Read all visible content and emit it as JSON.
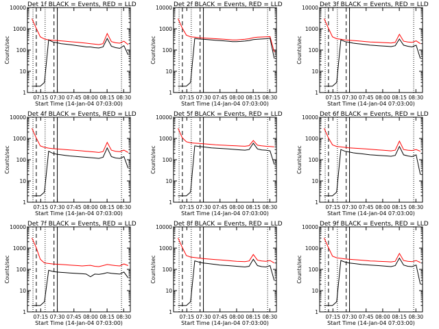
{
  "page": {
    "background": "#ffffff"
  },
  "colors": {
    "events": "#000000",
    "lld": "#ff0000",
    "axis": "#000000"
  },
  "chart_data": [
    {
      "type": "line",
      "title": "Det 1f BLACK = Events, RED = LLD",
      "xlabel": "Start Time (14-Jan-04 07:03:00)",
      "ylabel": "Counts/sec",
      "y_scale": "log",
      "ylim": [
        1,
        10000
      ],
      "y_ticks": [
        "1",
        "10",
        "100",
        "1000",
        "10000"
      ],
      "x_ticks": [
        "07:15",
        "07:30",
        "07:45",
        "08:00",
        "08:15",
        "08:30"
      ],
      "markers": {
        "dotted": [
          "07:08",
          "07:19",
          "08:28"
        ],
        "dashed": [
          "07:11",
          "07:27"
        ],
        "solid": [
          "07:30"
        ]
      },
      "series": [
        {
          "values": [
            3000,
            1100,
            420,
            330,
            300,
            290,
            280,
            270,
            260,
            250,
            240,
            230,
            220,
            210,
            200,
            190,
            180,
            200,
            600,
            250,
            220,
            210,
            260,
            180
          ],
          "color": "red"
        },
        {
          "values": [
            2,
            2,
            2,
            3,
            300,
            240,
            220,
            200,
            190,
            180,
            170,
            160,
            150,
            140,
            140,
            130,
            125,
            140,
            350,
            150,
            130,
            120,
            160,
            60
          ],
          "color": "black"
        }
      ]
    },
    {
      "type": "line",
      "title": "Det 2f BLACK = Events, RED = LLD",
      "xlabel": "Start Time (14-Jan-04 07:03:00)",
      "ylabel": "Counts/sec",
      "y_scale": "log",
      "ylim": [
        1,
        10000
      ],
      "y_ticks": [
        "1",
        "10",
        "100",
        "1000",
        "10000"
      ],
      "x_ticks": [
        "07:15",
        "07:30",
        "07:45",
        "08:00",
        "08:15",
        "08:30"
      ],
      "markers": {
        "dotted": [
          "07:08",
          "07:19",
          "08:28"
        ],
        "dashed": [
          "07:11",
          "07:27"
        ],
        "solid": [
          "07:30"
        ]
      },
      "series": [
        {
          "values": [
            3000,
            1100,
            500,
            420,
            400,
            380,
            370,
            360,
            350,
            340,
            330,
            320,
            310,
            300,
            300,
            310,
            320,
            340,
            380,
            400,
            410,
            420,
            430,
            80
          ],
          "color": "red"
        },
        {
          "values": [
            2,
            2,
            2,
            3,
            350,
            330,
            320,
            310,
            300,
            290,
            280,
            270,
            260,
            250,
            250,
            255,
            265,
            280,
            310,
            320,
            330,
            340,
            360,
            40
          ],
          "color": "black"
        }
      ]
    },
    {
      "type": "line",
      "title": "Det 3f BLACK = Events, RED = LLD",
      "xlabel": "Start Time (14-Jan-04 07:03:00)",
      "ylabel": "Counts/sec",
      "y_scale": "log",
      "ylim": [
        1,
        10000
      ],
      "y_ticks": [
        "1",
        "10",
        "100",
        "1000",
        "10000"
      ],
      "x_ticks": [
        "07:15",
        "07:30",
        "07:45",
        "08:00",
        "08:15",
        "08:30"
      ],
      "markers": {
        "dotted": [
          "07:08",
          "07:19",
          "08:28"
        ],
        "dashed": [
          "07:11",
          "07:27"
        ],
        "solid": [
          "07:30"
        ]
      },
      "series": [
        {
          "values": [
            3000,
            1100,
            420,
            340,
            320,
            300,
            290,
            280,
            270,
            260,
            250,
            240,
            235,
            230,
            225,
            220,
            215,
            230,
            550,
            260,
            240,
            230,
            270,
            200
          ],
          "color": "red"
        },
        {
          "values": [
            2,
            2,
            2,
            3,
            300,
            250,
            230,
            210,
            200,
            190,
            180,
            170,
            165,
            160,
            155,
            150,
            145,
            160,
            330,
            170,
            150,
            140,
            170,
            40
          ],
          "color": "black"
        }
      ]
    },
    {
      "type": "line",
      "title": "Det 4f BLACK = Events, RED = LLD",
      "xlabel": "Start Time (14-Jan-04 07:03:00)",
      "ylabel": "Counts/sec",
      "y_scale": "log",
      "ylim": [
        1,
        10000
      ],
      "y_ticks": [
        "1",
        "10",
        "100",
        "1000",
        "10000"
      ],
      "x_ticks": [
        "07:15",
        "07:30",
        "07:45",
        "08:00",
        "08:15",
        "08:30"
      ],
      "markers": {
        "dotted": [
          "07:08",
          "07:19",
          "08:28"
        ],
        "dashed": [
          "07:11",
          "07:27"
        ],
        "solid": [
          "07:30"
        ]
      },
      "series": [
        {
          "values": [
            3000,
            1100,
            450,
            380,
            350,
            330,
            320,
            310,
            300,
            290,
            280,
            270,
            260,
            250,
            240,
            230,
            220,
            240,
            650,
            280,
            250,
            240,
            280,
            220
          ],
          "color": "red"
        },
        {
          "values": [
            2,
            2,
            2,
            3,
            250,
            200,
            180,
            170,
            160,
            150,
            145,
            140,
            135,
            130,
            125,
            120,
            115,
            130,
            360,
            140,
            120,
            115,
            140,
            40
          ],
          "color": "black"
        }
      ]
    },
    {
      "type": "line",
      "title": "Det 5f BLACK = Events, RED = LLD",
      "xlabel": "Start Time (14-Jan-04 07:03:00)",
      "ylabel": "Counts/sec",
      "y_scale": "log",
      "ylim": [
        1,
        10000
      ],
      "y_ticks": [
        "1",
        "10",
        "100",
        "1000",
        "10000"
      ],
      "x_ticks": [
        "07:15",
        "07:30",
        "07:45",
        "08:00",
        "08:15",
        "08:30"
      ],
      "markers": {
        "dotted": [
          "07:08",
          "07:19",
          "08:28"
        ],
        "dashed": [
          "07:11",
          "07:27"
        ],
        "solid": [
          "07:30"
        ]
      },
      "series": [
        {
          "values": [
            3000,
            1100,
            700,
            620,
            600,
            580,
            560,
            540,
            520,
            500,
            490,
            480,
            470,
            460,
            450,
            440,
            430,
            460,
            800,
            480,
            450,
            430,
            420,
            400
          ],
          "color": "red"
        },
        {
          "values": [
            2,
            2,
            2,
            3,
            450,
            420,
            400,
            380,
            360,
            350,
            340,
            330,
            320,
            310,
            300,
            290,
            280,
            300,
            600,
            320,
            290,
            280,
            260,
            60
          ],
          "color": "black"
        }
      ]
    },
    {
      "type": "line",
      "title": "Det 6f BLACK = Events, RED = LLD",
      "xlabel": "Start Time (14-Jan-04 07:03:00)",
      "ylabel": "Counts/sec",
      "y_scale": "log",
      "ylim": [
        1,
        10000
      ],
      "y_ticks": [
        "1",
        "10",
        "100",
        "1000",
        "10000"
      ],
      "x_ticks": [
        "07:15",
        "07:30",
        "07:45",
        "08:00",
        "08:15",
        "08:30"
      ],
      "markers": {
        "dotted": [
          "07:08",
          "07:19",
          "08:28"
        ],
        "dashed": [
          "07:11",
          "07:27"
        ],
        "solid": [
          "07:30"
        ]
      },
      "series": [
        {
          "values": [
            3000,
            1100,
            500,
            420,
            400,
            380,
            360,
            350,
            340,
            330,
            320,
            310,
            300,
            290,
            280,
            270,
            260,
            280,
            750,
            300,
            280,
            270,
            300,
            250
          ],
          "color": "red"
        },
        {
          "values": [
            2,
            2,
            2,
            3,
            300,
            250,
            230,
            210,
            200,
            190,
            180,
            170,
            165,
            160,
            155,
            150,
            145,
            160,
            420,
            170,
            150,
            140,
            170,
            20
          ],
          "color": "black"
        }
      ]
    },
    {
      "type": "line",
      "title": "Det 7f BLACK = Events, RED = LLD",
      "xlabel": "Start Time (14-Jan-04 07:03:00)",
      "ylabel": "Counts/sec",
      "y_scale": "log",
      "ylim": [
        1,
        10000
      ],
      "y_ticks": [
        "1",
        "10",
        "100",
        "1000",
        "10000"
      ],
      "x_ticks": [
        "07:15",
        "07:30",
        "07:45",
        "08:00",
        "08:15",
        "08:30"
      ],
      "markers": {
        "dotted": [
          "07:08",
          "07:19",
          "08:28"
        ],
        "dashed": [
          "07:11",
          "07:27"
        ],
        "solid": [
          "07:30"
        ]
      },
      "series": [
        {
          "values": [
            3000,
            1100,
            300,
            200,
            190,
            180,
            175,
            170,
            165,
            160,
            155,
            150,
            145,
            150,
            155,
            140,
            135,
            150,
            170,
            160,
            150,
            145,
            180,
            150
          ],
          "color": "red"
        },
        {
          "values": [
            2,
            2,
            2,
            3,
            90,
            80,
            75,
            72,
            70,
            68,
            66,
            64,
            62,
            60,
            45,
            60,
            58,
            62,
            70,
            65,
            62,
            60,
            75,
            40
          ],
          "color": "black"
        }
      ]
    },
    {
      "type": "line",
      "title": "Det 8f BLACK = Events, RED = LLD",
      "xlabel": "Start Time (14-Jan-04 07:03:00)",
      "ylabel": "Counts/sec",
      "y_scale": "log",
      "ylim": [
        1,
        10000
      ],
      "y_ticks": [
        "1",
        "10",
        "100",
        "1000",
        "10000"
      ],
      "x_ticks": [
        "07:15",
        "07:30",
        "07:45",
        "08:00",
        "08:15",
        "08:30"
      ],
      "markers": {
        "dotted": [
          "07:08",
          "07:19",
          "08:28"
        ],
        "dashed": [
          "07:11",
          "07:27"
        ],
        "solid": [
          "07:30"
        ]
      },
      "series": [
        {
          "values": [
            3000,
            1100,
            450,
            380,
            360,
            340,
            320,
            310,
            300,
            290,
            280,
            270,
            260,
            250,
            240,
            235,
            230,
            250,
            500,
            270,
            250,
            240,
            260,
            200
          ],
          "color": "red"
        },
        {
          "values": [
            2,
            2,
            2,
            3,
            250,
            220,
            200,
            190,
            180,
            170,
            160,
            155,
            150,
            145,
            140,
            135,
            130,
            140,
            300,
            150,
            135,
            130,
            150,
            30
          ],
          "color": "black"
        }
      ]
    },
    {
      "type": "line",
      "title": "Det 9f BLACK = Events, RED = LLD",
      "xlabel": "Start Time (14-Jan-04 07:03:00)",
      "ylabel": "Counts/sec",
      "y_scale": "log",
      "ylim": [
        1,
        10000
      ],
      "y_ticks": [
        "1",
        "10",
        "100",
        "1000",
        "10000"
      ],
      "x_ticks": [
        "07:15",
        "07:30",
        "07:45",
        "08:00",
        "08:15",
        "08:30"
      ],
      "markers": {
        "dotted": [
          "07:08",
          "07:19",
          "08:28"
        ],
        "dashed": [
          "07:11",
          "07:27"
        ],
        "solid": [
          "07:30"
        ]
      },
      "series": [
        {
          "values": [
            3000,
            1100,
            420,
            350,
            330,
            310,
            300,
            290,
            280,
            270,
            260,
            250,
            245,
            240,
            235,
            230,
            225,
            240,
            560,
            260,
            240,
            230,
            260,
            210
          ],
          "color": "red"
        },
        {
          "values": [
            2,
            2,
            2,
            3,
            260,
            220,
            200,
            190,
            180,
            170,
            165,
            160,
            155,
            150,
            145,
            140,
            135,
            150,
            340,
            160,
            140,
            135,
            160,
            20
          ],
          "color": "black"
        }
      ]
    }
  ]
}
